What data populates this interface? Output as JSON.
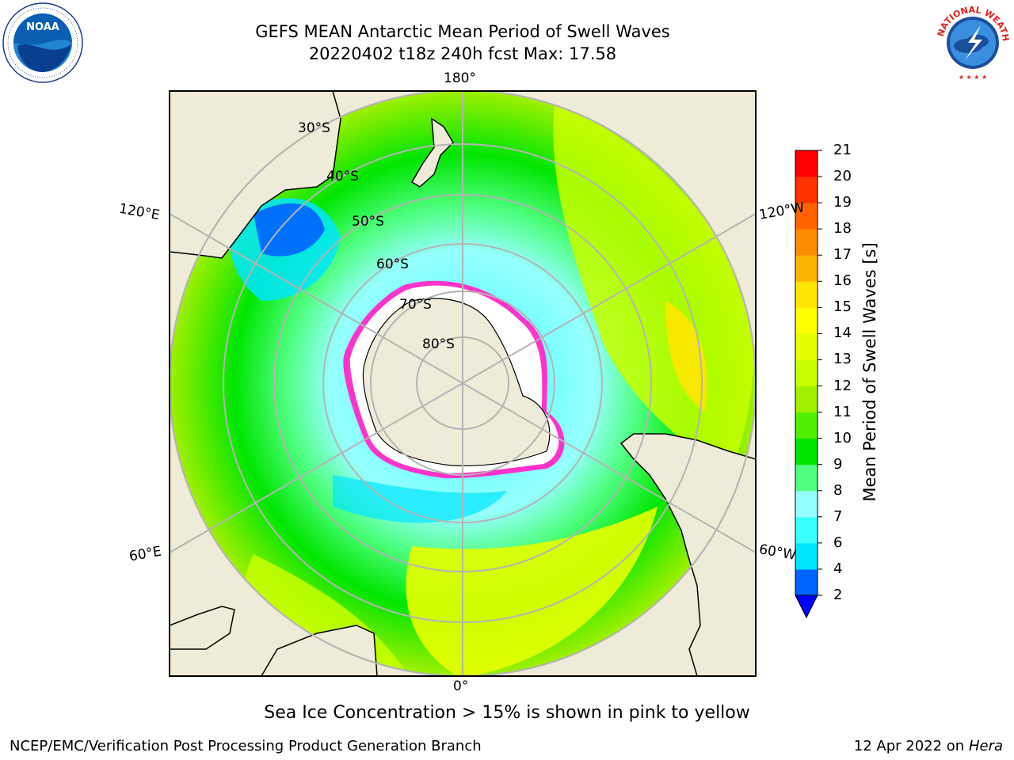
{
  "title": {
    "line1": "GEFS MEAN Antarctic Mean Period of Swell Waves",
    "line2": "20220402 t18z 240h fcst   Max: 17.58"
  },
  "logos": {
    "left": {
      "name": "noaa-logo",
      "text": "NOAA"
    },
    "right": {
      "name": "nws-logo",
      "ring_text": "NATIONAL WEATHER SERVICE"
    }
  },
  "map": {
    "projection": "south-polar-stereographic",
    "longitude_labels": {
      "top": "180°",
      "bottom": "0°",
      "upper_left": "120°E",
      "upper_right": "120°W",
      "lower_left": "60°E",
      "lower_right": "60°W"
    },
    "latitude_labels": [
      "30°S",
      "40°S",
      "50°S",
      "60°S",
      "70°S",
      "80°S"
    ],
    "colors": {
      "land": "#efebd9",
      "ice": "#ffffff",
      "grid": "#b4b4b4",
      "ice_edge": "#ff33cc"
    }
  },
  "colorbar": {
    "label": "Mean Period of Swell Waves [s]",
    "ticks": [
      "2",
      "4",
      "6",
      "7",
      "8",
      "9",
      "10",
      "11",
      "12",
      "13",
      "14",
      "15",
      "16",
      "17",
      "18",
      "19",
      "20",
      "21"
    ],
    "colors": [
      "#0064ff",
      "#00e6ff",
      "#3cffff",
      "#96ffff",
      "#50ff82",
      "#00e600",
      "#50f000",
      "#a0f000",
      "#c8ff00",
      "#e6ff00",
      "#ffff00",
      "#ffe600",
      "#ffb400",
      "#ff8c00",
      "#ff6400",
      "#ff3200",
      "#ff0000"
    ],
    "extend_color": "#0000ff"
  },
  "caption": "Sea Ice Concentration > 15% is shown in pink to yellow",
  "credits": {
    "left": "NCEP/EMC/Verification Post Processing Product Generation Branch",
    "right_date": "12 Apr 2022 on ",
    "right_machine": "Hera"
  }
}
